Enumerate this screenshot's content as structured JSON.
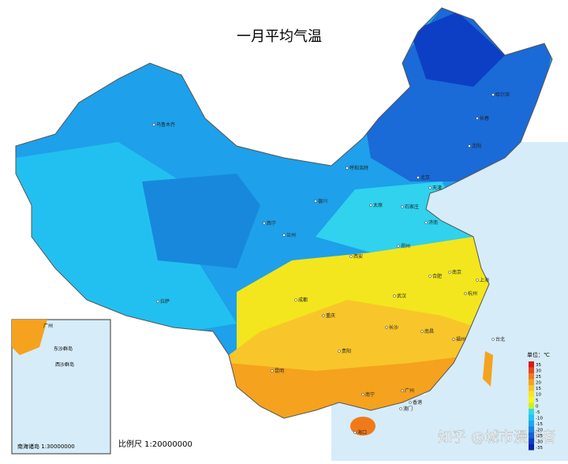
{
  "title": "一月平均气温",
  "scale": "比例尺 1:20000000",
  "inset": {
    "title": "南海诸岛 1:30000000",
    "labels": [
      "广州",
      "东沙群岛",
      "西沙群岛"
    ]
  },
  "legend": {
    "unit": "单位：℃",
    "items": [
      {
        "value": 35,
        "color": "#d7191c"
      },
      {
        "value": 30,
        "color": "#e8461c"
      },
      {
        "value": 25,
        "color": "#f07a1a"
      },
      {
        "value": 20,
        "color": "#f5a21e"
      },
      {
        "value": 15,
        "color": "#f8c62a"
      },
      {
        "value": 10,
        "color": "#fbe32c"
      },
      {
        "value": 5,
        "color": "#f6f51e"
      },
      {
        "value": 0,
        "color": "#c8f02a"
      },
      {
        "value": -5,
        "color": "#36d8e6"
      },
      {
        "value": -10,
        "color": "#22c4f0"
      },
      {
        "value": -15,
        "color": "#21a6ea"
      },
      {
        "value": -20,
        "color": "#1c84e0"
      },
      {
        "value": -25,
        "color": "#1462d4"
      },
      {
        "value": -30,
        "color": "#0d3fc4"
      },
      {
        "value": -35,
        "color": "#0a22a8"
      }
    ]
  },
  "cities": [
    "乌鲁木齐",
    "哈尔滨",
    "长春",
    "沈阳",
    "呼和浩特",
    "北京",
    "天津",
    "石家庄",
    "太原",
    "济南",
    "银川",
    "西宁",
    "兰州",
    "拉萨",
    "西安",
    "郑州",
    "成都",
    "重庆",
    "武汉",
    "合肥",
    "南京",
    "上海",
    "杭州",
    "长沙",
    "南昌",
    "贵阳",
    "昆明",
    "福州",
    "南宁",
    "广州",
    "香港",
    "澳门",
    "海口",
    "台北"
  ],
  "watermark": "知乎 @城市漫游者"
}
